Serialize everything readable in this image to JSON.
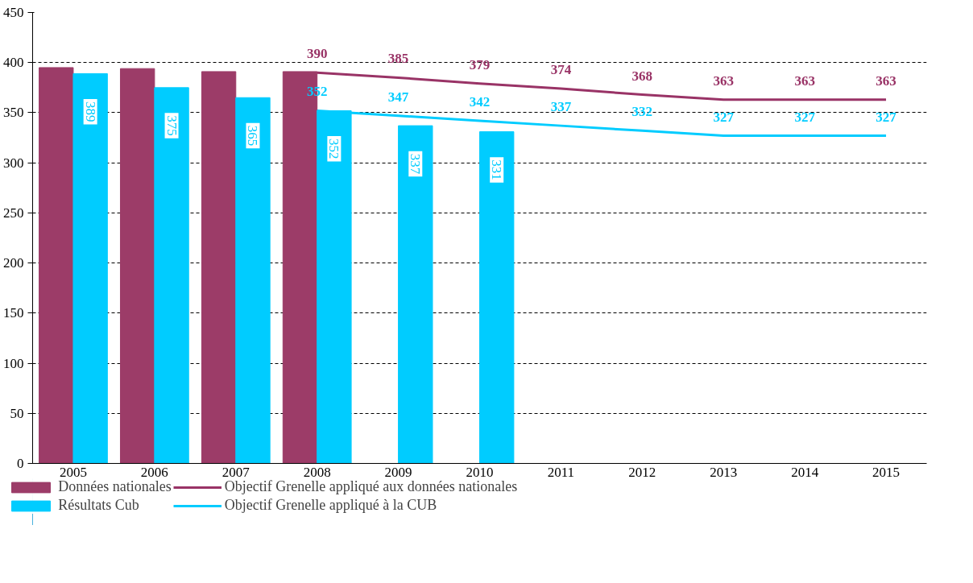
{
  "chart_data": {
    "type": "bar",
    "categories": [
      "2005",
      "2006",
      "2007",
      "2008",
      "2009",
      "2010",
      "2011",
      "2012",
      "2013",
      "2014",
      "2015"
    ],
    "series": [
      {
        "name": "Données nationales",
        "color": "#9c3c68",
        "values": [
          395,
          394,
          391,
          391,
          null,
          null,
          null,
          null,
          null,
          null,
          null
        ]
      },
      {
        "name": "Résultats Cub",
        "color": "#00ccff",
        "values": [
          389,
          375,
          365,
          352,
          337,
          331,
          null,
          null,
          null,
          null,
          null
        ],
        "value_labels": [
          "389",
          "375",
          "365",
          "352",
          "337",
          "331",
          null,
          null,
          null,
          null,
          null
        ]
      },
      {
        "name": "Objectif Grenelle appliqué aux données nationales",
        "type": "line",
        "color": "#993366",
        "values": [
          null,
          null,
          null,
          390,
          385,
          379,
          374,
          368,
          363,
          363,
          363
        ],
        "value_labels": [
          null,
          null,
          null,
          "390",
          "385",
          "379",
          "374",
          "368",
          "363",
          "363",
          "363"
        ]
      },
      {
        "name": "Objectif Grenelle appliqué à la CUB",
        "type": "line",
        "color": "#00ccff",
        "values": [
          null,
          null,
          null,
          352,
          347,
          342,
          337,
          332,
          327,
          327,
          327
        ],
        "value_labels": [
          null,
          null,
          null,
          "352",
          "347",
          "342",
          "337",
          "332",
          "327",
          "327",
          "327"
        ]
      }
    ],
    "ylim": [
      0,
      450
    ],
    "yticks": [
      0,
      50,
      100,
      150,
      200,
      250,
      300,
      350,
      400,
      450
    ],
    "grid": "y",
    "legend": "bottom"
  }
}
